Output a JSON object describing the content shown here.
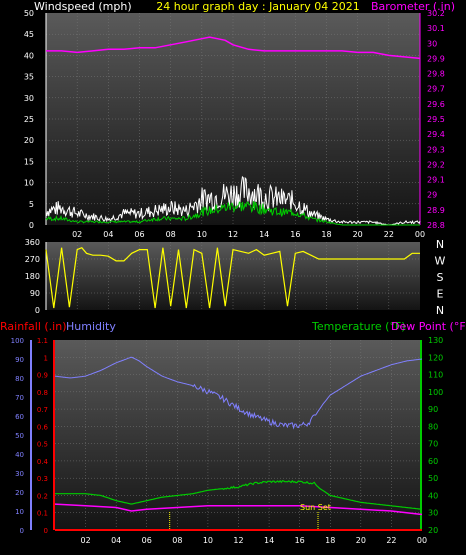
{
  "header": {
    "windspeed_label": "Windspeed (mph)",
    "title": "24 hour graph day : January 04 2021",
    "barometer_label": "Barometer (.in)"
  },
  "middle": {
    "dir_labels": [
      "N",
      "W",
      "S",
      "E",
      "N"
    ]
  },
  "lower_header": {
    "rainfall_label": "Rainfall (.in)",
    "humidity_label": "Humidity",
    "temperature_label": "Temperature (°F)",
    "dewpoint_label": "Dew Point (°F)"
  },
  "sunset_label": "Sun Set",
  "colors": {
    "windspeed": "#ffffff",
    "gust_avg": "#00cc00",
    "barometer": "#ff00ff",
    "direction": "#ffff00",
    "humidity": "#8080ff",
    "temperature": "#00cc00",
    "dewpoint": "#ff00ff",
    "rainfall": "#ff0000"
  },
  "chart_data": [
    {
      "type": "line",
      "name": "wind-barometer",
      "x_ticks": [
        "02",
        "04",
        "06",
        "08",
        "10",
        "12",
        "14",
        "16",
        "18",
        "20",
        "22",
        "00"
      ],
      "y_left_ticks": [
        "0",
        "5",
        "10",
        "15",
        "20",
        "25",
        "30",
        "35",
        "40",
        "45",
        "50"
      ],
      "y_left_range": [
        0,
        50
      ],
      "y_right_ticks": [
        "28.8",
        "28.9",
        "29",
        "29.1",
        "29.2",
        "29.3",
        "29.4",
        "29.5",
        "29.6",
        "29.7",
        "29.8",
        "29.9",
        "30",
        "30.1",
        "30.2"
      ],
      "y_right_range": [
        28.8,
        30.2
      ],
      "barometer": {
        "x": [
          0,
          1,
          2,
          3,
          4,
          5,
          6,
          7,
          8,
          9,
          10,
          10.5,
          11,
          11.5,
          12,
          13,
          14,
          15,
          16,
          17,
          18,
          19,
          20,
          21,
          22,
          23,
          24
        ],
        "values": [
          29.95,
          29.95,
          29.94,
          29.95,
          29.96,
          29.96,
          29.97,
          29.97,
          29.99,
          30.01,
          30.03,
          30.04,
          30.03,
          30.02,
          29.99,
          29.96,
          29.95,
          29.95,
          29.95,
          29.95,
          29.95,
          29.95,
          29.94,
          29.94,
          29.92,
          29.91,
          29.9
        ]
      },
      "windspeed_max": {
        "x": [
          0,
          1,
          2,
          3,
          4,
          5,
          6,
          7,
          8,
          9,
          10,
          11,
          12,
          13,
          14,
          15,
          16,
          17,
          18,
          19,
          20,
          21,
          22,
          23,
          24
        ],
        "values": [
          5,
          6,
          4,
          3,
          2,
          4,
          4,
          5,
          6,
          5,
          9,
          10,
          11,
          12,
          10,
          9,
          8,
          4,
          2,
          1,
          1,
          1,
          0,
          1,
          1
        ]
      },
      "windspeed_avg": {
        "x": [
          0,
          1,
          2,
          3,
          4,
          5,
          6,
          7,
          8,
          9,
          10,
          11,
          12,
          13,
          14,
          15,
          16,
          17,
          18,
          19,
          20,
          21,
          22,
          23,
          24
        ],
        "values": [
          2,
          2,
          1,
          1,
          1,
          1,
          1,
          2,
          2,
          2,
          4,
          5,
          6,
          6,
          5,
          4,
          4,
          2,
          1,
          0,
          0,
          0,
          0,
          0,
          0
        ]
      }
    },
    {
      "type": "line",
      "name": "wind-direction",
      "y_ticks": [
        "0",
        "90",
        "180",
        "270",
        "360"
      ],
      "y_range": [
        0,
        360
      ],
      "x": [
        0,
        0.5,
        1,
        1.5,
        2,
        2.3,
        2.6,
        3,
        3.5,
        4,
        4.5,
        5,
        5.5,
        6,
        6.5,
        7,
        7.5,
        8,
        8.5,
        9,
        9.5,
        10,
        10.5,
        11,
        11.5,
        12,
        12.5,
        13,
        13.5,
        14,
        14.5,
        15,
        15.5,
        16,
        16.5,
        17,
        17.5,
        18,
        19,
        20,
        21,
        22,
        23,
        23.5,
        24
      ],
      "values": [
        320,
        10,
        330,
        15,
        320,
        330,
        300,
        290,
        290,
        285,
        260,
        260,
        300,
        320,
        320,
        10,
        330,
        20,
        320,
        10,
        320,
        300,
        10,
        330,
        20,
        320,
        310,
        300,
        320,
        290,
        300,
        310,
        20,
        300,
        310,
        290,
        270,
        270,
        270,
        270,
        270,
        270,
        270,
        300,
        300
      ]
    },
    {
      "type": "line",
      "name": "humidity-temperature",
      "y_left_ticks": [
        "0",
        "10",
        "20",
        "30",
        "40",
        "50",
        "60",
        "70",
        "80",
        "90",
        "100"
      ],
      "y_left_range": [
        0,
        100
      ],
      "rain_ticks": [
        "0",
        "0.1",
        "0.2",
        "0.3",
        "0.4",
        "0.5",
        "0.6",
        "0.7",
        "0.8",
        "0.9",
        "1",
        "1.1"
      ],
      "rain_range": [
        0,
        1.1
      ],
      "y_right_ticks": [
        "20",
        "30",
        "40",
        "50",
        "60",
        "70",
        "80",
        "90",
        "100",
        "110",
        "120",
        "130"
      ],
      "y_right_range": [
        20,
        130
      ],
      "humidity": {
        "x": [
          0,
          1,
          2,
          3,
          4,
          5,
          5.5,
          6,
          7,
          8,
          9,
          10,
          11,
          12,
          13,
          14,
          15,
          16,
          16.5,
          17,
          17.5,
          18,
          19,
          20,
          21,
          22,
          23,
          24
        ],
        "values": [
          81,
          80,
          81,
          84,
          88,
          91,
          89,
          86,
          81,
          78,
          76,
          73,
          69,
          64,
          60,
          57,
          55,
          55,
          56,
          60,
          66,
          71,
          76,
          81,
          84,
          87,
          89,
          90
        ]
      },
      "temperature": {
        "x": [
          0,
          1,
          2,
          3,
          4,
          5,
          6,
          7,
          8,
          9,
          10,
          11,
          12,
          13,
          14,
          15,
          16,
          17,
          17.5,
          18,
          19,
          20,
          21,
          22,
          23,
          24
        ],
        "values": [
          41,
          41,
          41,
          40,
          37,
          35,
          37,
          39,
          40,
          41,
          43,
          44,
          45,
          47,
          48,
          48,
          48,
          47,
          43,
          40,
          38,
          36,
          35,
          34,
          33,
          32
        ]
      },
      "dewpoint": {
        "x": [
          0,
          2,
          4,
          5,
          6,
          8,
          10,
          12,
          14,
          16,
          18,
          20,
          22,
          24
        ],
        "values": [
          35,
          34,
          33,
          31,
          32,
          33,
          34,
          34,
          34,
          34,
          33,
          32,
          31,
          29
        ]
      },
      "rainfall": {
        "x": [
          0,
          24
        ],
        "values": [
          0,
          0
        ]
      },
      "sunset_x": 17.2,
      "sunrise_x": 7.5
    }
  ]
}
